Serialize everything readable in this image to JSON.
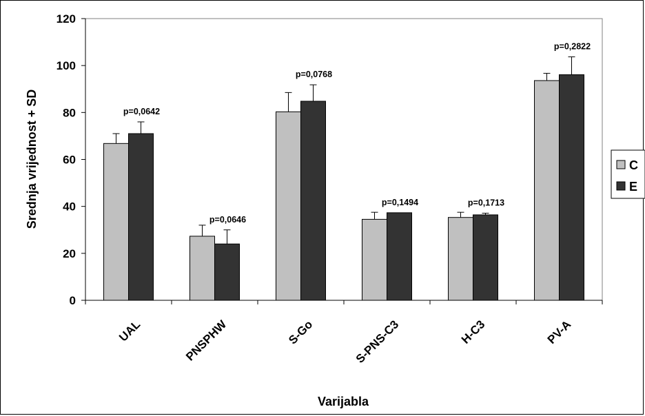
{
  "chart_data": {
    "type": "bar",
    "title": "",
    "xlabel": "Varijabla",
    "ylabel": "Srednja vrijednost + SD",
    "ylim": [
      0,
      120
    ],
    "yticks": [
      "0",
      "20",
      "40",
      "60",
      "80",
      "100",
      "120"
    ],
    "categories": [
      "UAL",
      "PNSPHW",
      "S-Go",
      "S-PNS-C3",
      "H-C3",
      "PV-A"
    ],
    "series": [
      {
        "name": "C",
        "color": "#c0c0c0",
        "values": [
          66.8,
          27.3,
          80.3,
          34.5,
          35.3,
          93.6
        ],
        "sd": [
          4.2,
          4.7,
          8.2,
          3.0,
          2.2,
          3.1
        ]
      },
      {
        "name": "E",
        "color": "#333333",
        "values": [
          71.0,
          24.0,
          84.8,
          37.3,
          36.4,
          96.1
        ],
        "sd": [
          5.0,
          6.0,
          7.0,
          0.0,
          0.7,
          7.6
        ]
      }
    ],
    "annotations": [
      "p=0,0642",
      "p=0,0646",
      "p=0,0768",
      "p=0,1494",
      "p=0,1713",
      "p=0,2822"
    ],
    "legend": {
      "placement": "right",
      "entries": [
        "C",
        "E"
      ]
    },
    "grid": false
  }
}
